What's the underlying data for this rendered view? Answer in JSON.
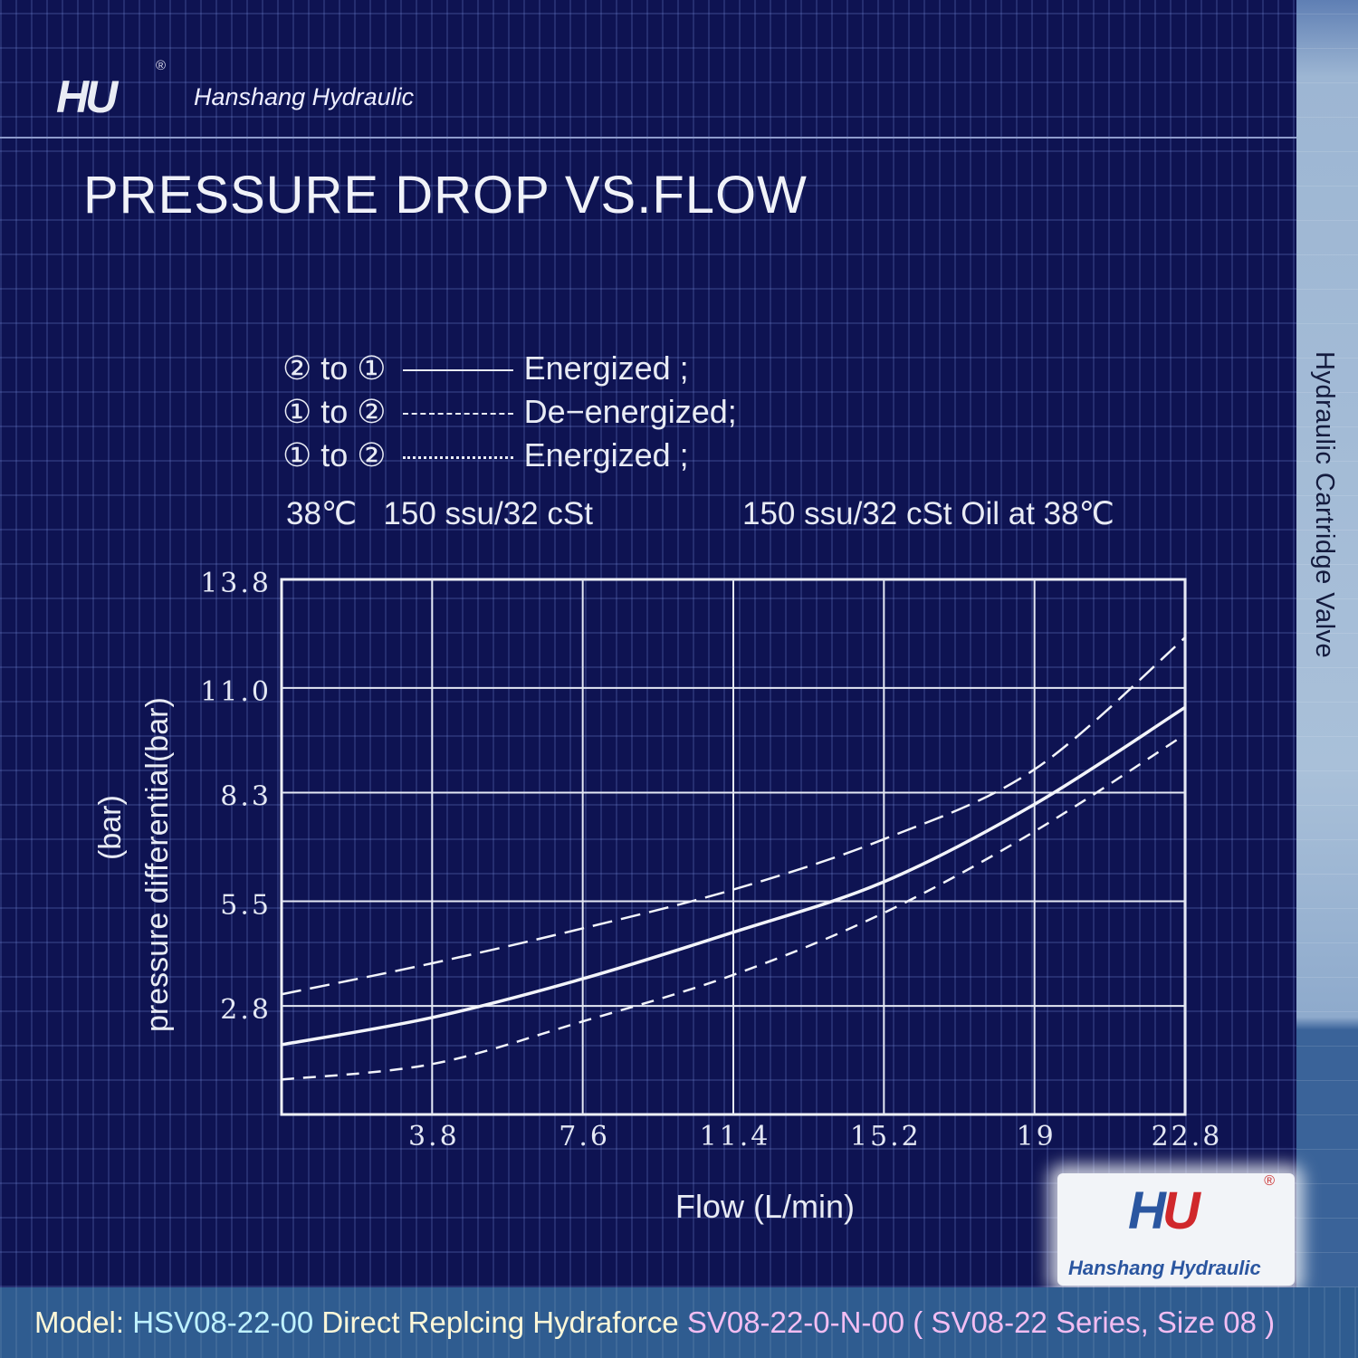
{
  "header": {
    "brand": "Hanshang Hydraulic",
    "logo_text": "HU",
    "registered": "®"
  },
  "title": "PRESSURE DROP VS.FLOW",
  "side_label": "Hydraulic Cartridge Valve",
  "legend": [
    {
      "path": "② to ①",
      "style": "solid",
      "label": "Energized ;"
    },
    {
      "path": "① to ②",
      "style": "long-dash",
      "label": "De−energized;"
    },
    {
      "path": "① to ②",
      "style": "short-dash",
      "label": "Energized ;"
    }
  ],
  "conditions": {
    "left": "38℃   150 ssu/32 cSt",
    "right": "150 ssu/32 cSt Oil at 38℃"
  },
  "chart_data": {
    "type": "line",
    "title": "PRESSURE DROP VS.FLOW",
    "xlabel": "Flow (L/min)",
    "ylabel_units": "(bar)",
    "ylabel": "pressure differential(bar)",
    "xlim": [
      0,
      22.8
    ],
    "ylim": [
      0,
      13.8
    ],
    "xticks": [
      "3.8",
      "7.6",
      "11.4",
      "15.2",
      "19",
      "22.8"
    ],
    "yticks": [
      "13.8",
      "11.0",
      "8.3",
      "5.5",
      "2.8"
    ],
    "xtick_values": [
      3.8,
      7.6,
      11.4,
      15.2,
      19,
      22.8
    ],
    "ytick_values": [
      13.8,
      11.0,
      8.3,
      5.5,
      2.8
    ],
    "grid": true,
    "x": [
      0,
      3.8,
      7.6,
      11.4,
      15.2,
      19,
      22.8
    ],
    "series": [
      {
        "name": "② to ① Energized",
        "style": "solid",
        "values": [
          1.8,
          2.5,
          3.5,
          4.7,
          6.0,
          8.0,
          10.5
        ]
      },
      {
        "name": "① to ② De-energized",
        "style": "long-dash",
        "values": [
          3.1,
          3.9,
          4.8,
          5.8,
          7.1,
          8.9,
          12.3
        ]
      },
      {
        "name": "① to ② Energized",
        "style": "short-dash",
        "values": [
          0.9,
          1.3,
          2.4,
          3.6,
          5.2,
          7.3,
          9.8
        ]
      }
    ]
  },
  "footer": {
    "model_label": "Model: ",
    "model": "HSV08-22-00",
    "mid": " Direct Replcing Hydraforce ",
    "ref": "SV08-22-0-N-00 ( SV08-22 Series, Size 08 )"
  },
  "bottom_logo": {
    "text": "Hanshang Hydraulic",
    "mark": "HU",
    "registered": "®"
  }
}
